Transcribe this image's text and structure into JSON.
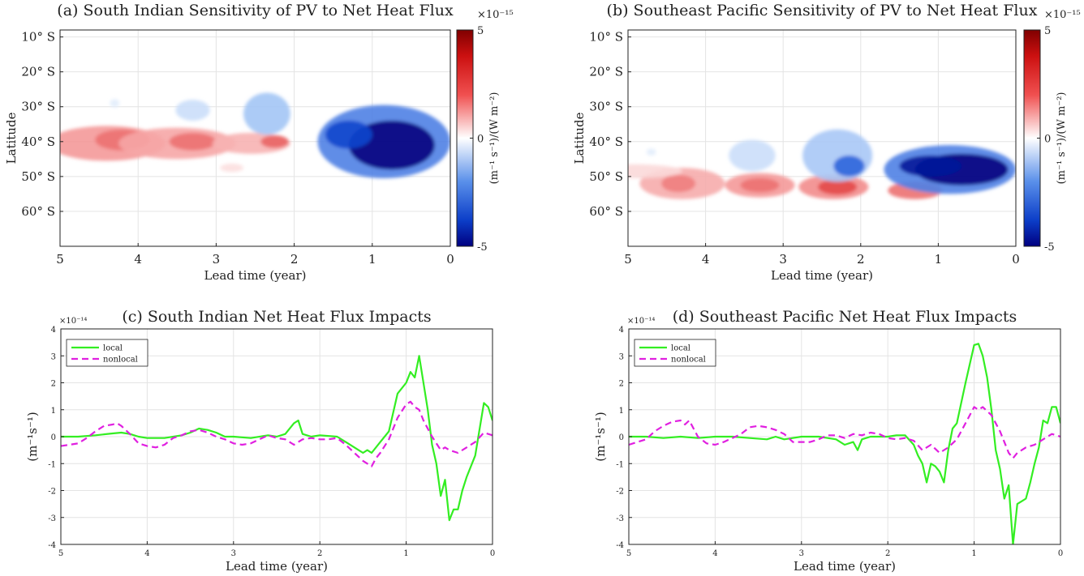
{
  "chart_data": [
    {
      "type": "heatmap",
      "title": "(a) South Indian Sensitivity of PV to Net Heat Flux",
      "xlabel": "Lead time (year)",
      "ylabel": "Latitude",
      "xlim": [
        5,
        0
      ],
      "ylim": [
        -70,
        -8
      ],
      "x_ticks": [
        "5",
        "4",
        "3",
        "2",
        "1",
        "0"
      ],
      "y_ticks": [
        "10° S",
        "20° S",
        "30° S",
        "40° S",
        "50° S",
        "60° S"
      ],
      "colorbar": {
        "label": "(m⁻¹ s⁻¹)/(W m⁻²)",
        "exponent": "×10⁻¹⁵",
        "min": -5,
        "max": 5,
        "ticks": [
          "5",
          "0",
          "-5"
        ]
      },
      "blobs": [
        {
          "lead": 4.4,
          "lat": -40.5,
          "lead_halfwidth": 0.75,
          "lat_halfwidth": 5.0,
          "value": 1.6
        },
        {
          "lead": 4.2,
          "lat": -39.5,
          "lead_halfwidth": 0.35,
          "lat_halfwidth": 3.0,
          "value": 2.2
        },
        {
          "lead": 3.5,
          "lat": -40.5,
          "lead_halfwidth": 0.75,
          "lat_halfwidth": 4.5,
          "value": 1.4
        },
        {
          "lead": 3.3,
          "lat": -40.0,
          "lead_halfwidth": 0.3,
          "lat_halfwidth": 2.5,
          "value": 2.2
        },
        {
          "lead": 2.55,
          "lat": -40.5,
          "lead_halfwidth": 0.5,
          "lat_halfwidth": 3.0,
          "value": 1.2
        },
        {
          "lead": 2.25,
          "lat": -40.0,
          "lead_halfwidth": 0.18,
          "lat_halfwidth": 1.8,
          "value": 2.4
        },
        {
          "lead": 3.3,
          "lat": -31.0,
          "lead_halfwidth": 0.22,
          "lat_halfwidth": 3.0,
          "value": -0.9
        },
        {
          "lead": 2.35,
          "lat": -32.0,
          "lead_halfwidth": 0.3,
          "lat_halfwidth": 6.0,
          "value": -1.6
        },
        {
          "lead": 4.3,
          "lat": -29.0,
          "lead_halfwidth": 0.06,
          "lat_halfwidth": 1.2,
          "value": -0.5
        },
        {
          "lead": 0.85,
          "lat": -40.0,
          "lead_halfwidth": 0.85,
          "lat_halfwidth": 10.5,
          "value": -2.6
        },
        {
          "lead": 0.75,
          "lat": -41.0,
          "lead_halfwidth": 0.55,
          "lat_halfwidth": 7.0,
          "value": -5.0
        },
        {
          "lead": 1.3,
          "lat": -38.0,
          "lead_halfwidth": 0.3,
          "lat_halfwidth": 4.0,
          "value": -3.5
        },
        {
          "lead": 2.8,
          "lat": -47.5,
          "lead_halfwidth": 0.15,
          "lat_halfwidth": 1.2,
          "value": 0.5
        }
      ]
    },
    {
      "type": "heatmap",
      "title": "(b) Southeast Pacific Sensitivity of PV to Net Heat Flux",
      "xlabel": "Lead time (year)",
      "ylabel": "Latitude",
      "xlim": [
        5,
        0
      ],
      "ylim": [
        -70,
        -8
      ],
      "x_ticks": [
        "5",
        "4",
        "3",
        "2",
        "1",
        "0"
      ],
      "y_ticks": [
        "10° S",
        "20° S",
        "30° S",
        "40° S",
        "50° S",
        "60° S"
      ],
      "colorbar": {
        "label": "(m⁻¹ s⁻¹)/(W m⁻²)",
        "exponent": "×10⁻¹⁵",
        "min": -5,
        "max": 5,
        "ticks": [
          "5",
          "0",
          "-5"
        ]
      },
      "blobs": [
        {
          "lead": 4.3,
          "lat": -52.0,
          "lead_halfwidth": 0.55,
          "lat_halfwidth": 4.5,
          "value": 1.3
        },
        {
          "lead": 4.35,
          "lat": -52.0,
          "lead_halfwidth": 0.22,
          "lat_halfwidth": 2.5,
          "value": 2.0
        },
        {
          "lead": 3.3,
          "lat": -52.5,
          "lead_halfwidth": 0.45,
          "lat_halfwidth": 3.5,
          "value": 1.6
        },
        {
          "lead": 3.3,
          "lat": -52.5,
          "lead_halfwidth": 0.25,
          "lat_halfwidth": 2.0,
          "value": 2.2
        },
        {
          "lead": 2.35,
          "lat": -53.0,
          "lead_halfwidth": 0.45,
          "lat_halfwidth": 3.5,
          "value": 1.8
        },
        {
          "lead": 2.3,
          "lat": -53.0,
          "lead_halfwidth": 0.25,
          "lat_halfwidth": 2.2,
          "value": 2.8
        },
        {
          "lead": 1.3,
          "lat": -54.0,
          "lead_halfwidth": 0.35,
          "lat_halfwidth": 2.5,
          "value": 2.2
        },
        {
          "lead": 4.9,
          "lat": -48.5,
          "lead_halfwidth": 0.6,
          "lat_halfwidth": 2.0,
          "value": 0.6
        },
        {
          "lead": 3.4,
          "lat": -44.0,
          "lead_halfwidth": 0.3,
          "lat_halfwidth": 4.5,
          "value": -0.9
        },
        {
          "lead": 4.7,
          "lat": -43.0,
          "lead_halfwidth": 0.06,
          "lat_halfwidth": 1.0,
          "value": -0.5
        },
        {
          "lead": 2.3,
          "lat": -44.0,
          "lead_halfwidth": 0.45,
          "lat_halfwidth": 7.5,
          "value": -1.5
        },
        {
          "lead": 2.15,
          "lat": -47.0,
          "lead_halfwidth": 0.2,
          "lat_halfwidth": 3.0,
          "value": -3.0
        },
        {
          "lead": 0.85,
          "lat": -48.0,
          "lead_halfwidth": 0.85,
          "lat_halfwidth": 7.0,
          "value": -2.6
        },
        {
          "lead": 0.7,
          "lat": -48.0,
          "lead_halfwidth": 0.6,
          "lat_halfwidth": 4.5,
          "value": -5.0
        },
        {
          "lead": 1.1,
          "lat": -47.0,
          "lead_halfwidth": 0.4,
          "lat_halfwidth": 3.0,
          "value": -4.5
        }
      ]
    },
    {
      "type": "line",
      "title": "(c) South Indian Net Heat Flux Impacts",
      "xlabel": "Lead time (year)",
      "ylabel": "(m⁻¹s⁻¹)",
      "y_exponent": "×10⁻¹⁴",
      "xlim": [
        5,
        0
      ],
      "ylim": [
        -4,
        4
      ],
      "x_ticks": [
        "5",
        "4",
        "3",
        "2",
        "1",
        "0"
      ],
      "y_ticks": [
        "4",
        "3",
        "2",
        "1",
        "0",
        "-1",
        "-2",
        "-3",
        "-4"
      ],
      "legend_position": "top-left",
      "series": [
        {
          "name": "local",
          "color": "#33ee22",
          "dash": "solid",
          "x": [
            5,
            4.8,
            4.6,
            4.4,
            4.3,
            4.2,
            4.1,
            4.0,
            3.8,
            3.6,
            3.5,
            3.4,
            3.3,
            3.2,
            3.1,
            3.0,
            2.8,
            2.6,
            2.5,
            2.4,
            2.3,
            2.25,
            2.2,
            2.1,
            2.0,
            1.8,
            1.7,
            1.6,
            1.5,
            1.45,
            1.4,
            1.3,
            1.2,
            1.1,
            1.0,
            0.95,
            0.9,
            0.85,
            0.8,
            0.75,
            0.7,
            0.65,
            0.6,
            0.55,
            0.5,
            0.45,
            0.4,
            0.35,
            0.3,
            0.2,
            0.1,
            0.05,
            0
          ],
          "y": [
            0,
            0,
            0.05,
            0.12,
            0.15,
            0.1,
            0,
            -0.05,
            -0.05,
            0.05,
            0.15,
            0.3,
            0.25,
            0.15,
            0,
            0,
            -0.05,
            0.05,
            0,
            0.1,
            0.5,
            0.6,
            0.1,
            0,
            0.05,
            0,
            -0.2,
            -0.4,
            -0.6,
            -0.5,
            -0.6,
            -0.2,
            0.2,
            1.6,
            2.0,
            2.4,
            2.2,
            3.0,
            2.0,
            1.0,
            -0.3,
            -1.0,
            -2.2,
            -1.6,
            -3.1,
            -2.7,
            -2.7,
            -2.0,
            -1.5,
            -0.7,
            1.25,
            1.1,
            0.6
          ]
        },
        {
          "name": "nonlocal",
          "color": "#e020e0",
          "dash": "dashed",
          "x": [
            5,
            4.8,
            4.7,
            4.6,
            4.5,
            4.4,
            4.35,
            4.3,
            4.2,
            4.1,
            4.0,
            3.9,
            3.8,
            3.7,
            3.6,
            3.5,
            3.4,
            3.3,
            3.2,
            3.1,
            3.0,
            2.9,
            2.8,
            2.7,
            2.6,
            2.5,
            2.4,
            2.3,
            2.2,
            2.1,
            2.0,
            1.9,
            1.8,
            1.7,
            1.6,
            1.5,
            1.4,
            1.35,
            1.3,
            1.2,
            1.1,
            1.0,
            0.95,
            0.9,
            0.85,
            0.8,
            0.7,
            0.6,
            0.55,
            0.5,
            0.4,
            0.3,
            0.2,
            0.1,
            0
          ],
          "y": [
            -0.35,
            -0.25,
            -0.05,
            0.2,
            0.4,
            0.45,
            0.5,
            0.4,
            0.1,
            -0.25,
            -0.35,
            -0.4,
            -0.3,
            -0.05,
            0.05,
            0.2,
            0.25,
            0.15,
            0,
            -0.1,
            -0.25,
            -0.3,
            -0.25,
            -0.1,
            0.05,
            -0.05,
            -0.1,
            -0.3,
            -0.1,
            -0.05,
            -0.1,
            -0.1,
            -0.05,
            -0.3,
            -0.6,
            -0.9,
            -1.1,
            -0.8,
            -0.6,
            -0.1,
            0.7,
            1.2,
            1.3,
            1.1,
            1.0,
            0.6,
            0.0,
            -0.5,
            -0.4,
            -0.5,
            -0.6,
            -0.4,
            -0.2,
            0.15,
            0.05
          ]
        }
      ]
    },
    {
      "type": "line",
      "title": "(d) Southeast Pacific Net Heat Flux Impacts",
      "xlabel": "Lead time (year)",
      "ylabel": "(m⁻¹s⁻¹)",
      "y_exponent": "×10⁻¹⁴",
      "xlim": [
        5,
        0
      ],
      "ylim": [
        -4,
        4
      ],
      "x_ticks": [
        "5",
        "4",
        "3",
        "2",
        "1",
        "0"
      ],
      "y_ticks": [
        "4",
        "3",
        "2",
        "1",
        "0",
        "-1",
        "-2",
        "-3",
        "-4"
      ],
      "legend_position": "top-left",
      "series": [
        {
          "name": "local",
          "color": "#33ee22",
          "dash": "solid",
          "x": [
            5,
            4.8,
            4.6,
            4.4,
            4.2,
            4.0,
            3.8,
            3.6,
            3.4,
            3.3,
            3.2,
            3.0,
            2.8,
            2.6,
            2.5,
            2.4,
            2.35,
            2.3,
            2.2,
            2.1,
            2.0,
            1.9,
            1.8,
            1.7,
            1.65,
            1.6,
            1.55,
            1.5,
            1.45,
            1.4,
            1.35,
            1.3,
            1.25,
            1.2,
            1.1,
            1.0,
            0.95,
            0.9,
            0.85,
            0.8,
            0.75,
            0.7,
            0.65,
            0.6,
            0.55,
            0.5,
            0.45,
            0.4,
            0.35,
            0.3,
            0.25,
            0.2,
            0.15,
            0.1,
            0.05,
            0
          ],
          "y": [
            0,
            0,
            -0.05,
            0,
            -0.05,
            0,
            0,
            -0.05,
            -0.1,
            0,
            -0.1,
            0,
            0,
            -0.1,
            -0.3,
            -0.2,
            -0.5,
            -0.1,
            0,
            0,
            0,
            0.05,
            0.05,
            -0.3,
            -0.7,
            -1.0,
            -1.7,
            -1.0,
            -1.1,
            -1.3,
            -1.7,
            -0.5,
            0.3,
            0.5,
            2.0,
            3.4,
            3.45,
            3.0,
            2.2,
            1.0,
            -0.5,
            -1.2,
            -2.3,
            -1.8,
            -4.0,
            -2.5,
            -2.4,
            -2.3,
            -1.7,
            -1.0,
            -0.4,
            0.6,
            0.5,
            1.1,
            1.1,
            0.5
          ]
        },
        {
          "name": "nonlocal",
          "color": "#e020e0",
          "dash": "dashed",
          "x": [
            5,
            4.8,
            4.7,
            4.6,
            4.5,
            4.4,
            4.35,
            4.3,
            4.2,
            4.1,
            4.0,
            3.9,
            3.8,
            3.7,
            3.6,
            3.5,
            3.4,
            3.3,
            3.2,
            3.1,
            3.0,
            2.9,
            2.8,
            2.7,
            2.6,
            2.5,
            2.4,
            2.3,
            2.2,
            2.1,
            2.0,
            1.9,
            1.8,
            1.7,
            1.6,
            1.5,
            1.4,
            1.3,
            1.2,
            1.1,
            1.0,
            0.95,
            0.9,
            0.8,
            0.7,
            0.6,
            0.55,
            0.5,
            0.4,
            0.3,
            0.2,
            0.1,
            0
          ],
          "y": [
            -0.3,
            -0.1,
            0.2,
            0.4,
            0.55,
            0.6,
            0.45,
            0.6,
            0.0,
            -0.25,
            -0.3,
            -0.2,
            -0.05,
            0.1,
            0.35,
            0.4,
            0.35,
            0.25,
            0.1,
            -0.2,
            -0.2,
            -0.2,
            -0.1,
            0.05,
            0.05,
            -0.05,
            0.1,
            0.05,
            0.15,
            0.1,
            -0.05,
            -0.1,
            -0.05,
            -0.15,
            -0.5,
            -0.3,
            -0.6,
            -0.4,
            -0.1,
            0.5,
            1.1,
            1.0,
            1.1,
            0.8,
            0.2,
            -0.6,
            -0.8,
            -0.6,
            -0.4,
            -0.3,
            -0.1,
            0.1,
            0.0
          ]
        }
      ]
    }
  ]
}
